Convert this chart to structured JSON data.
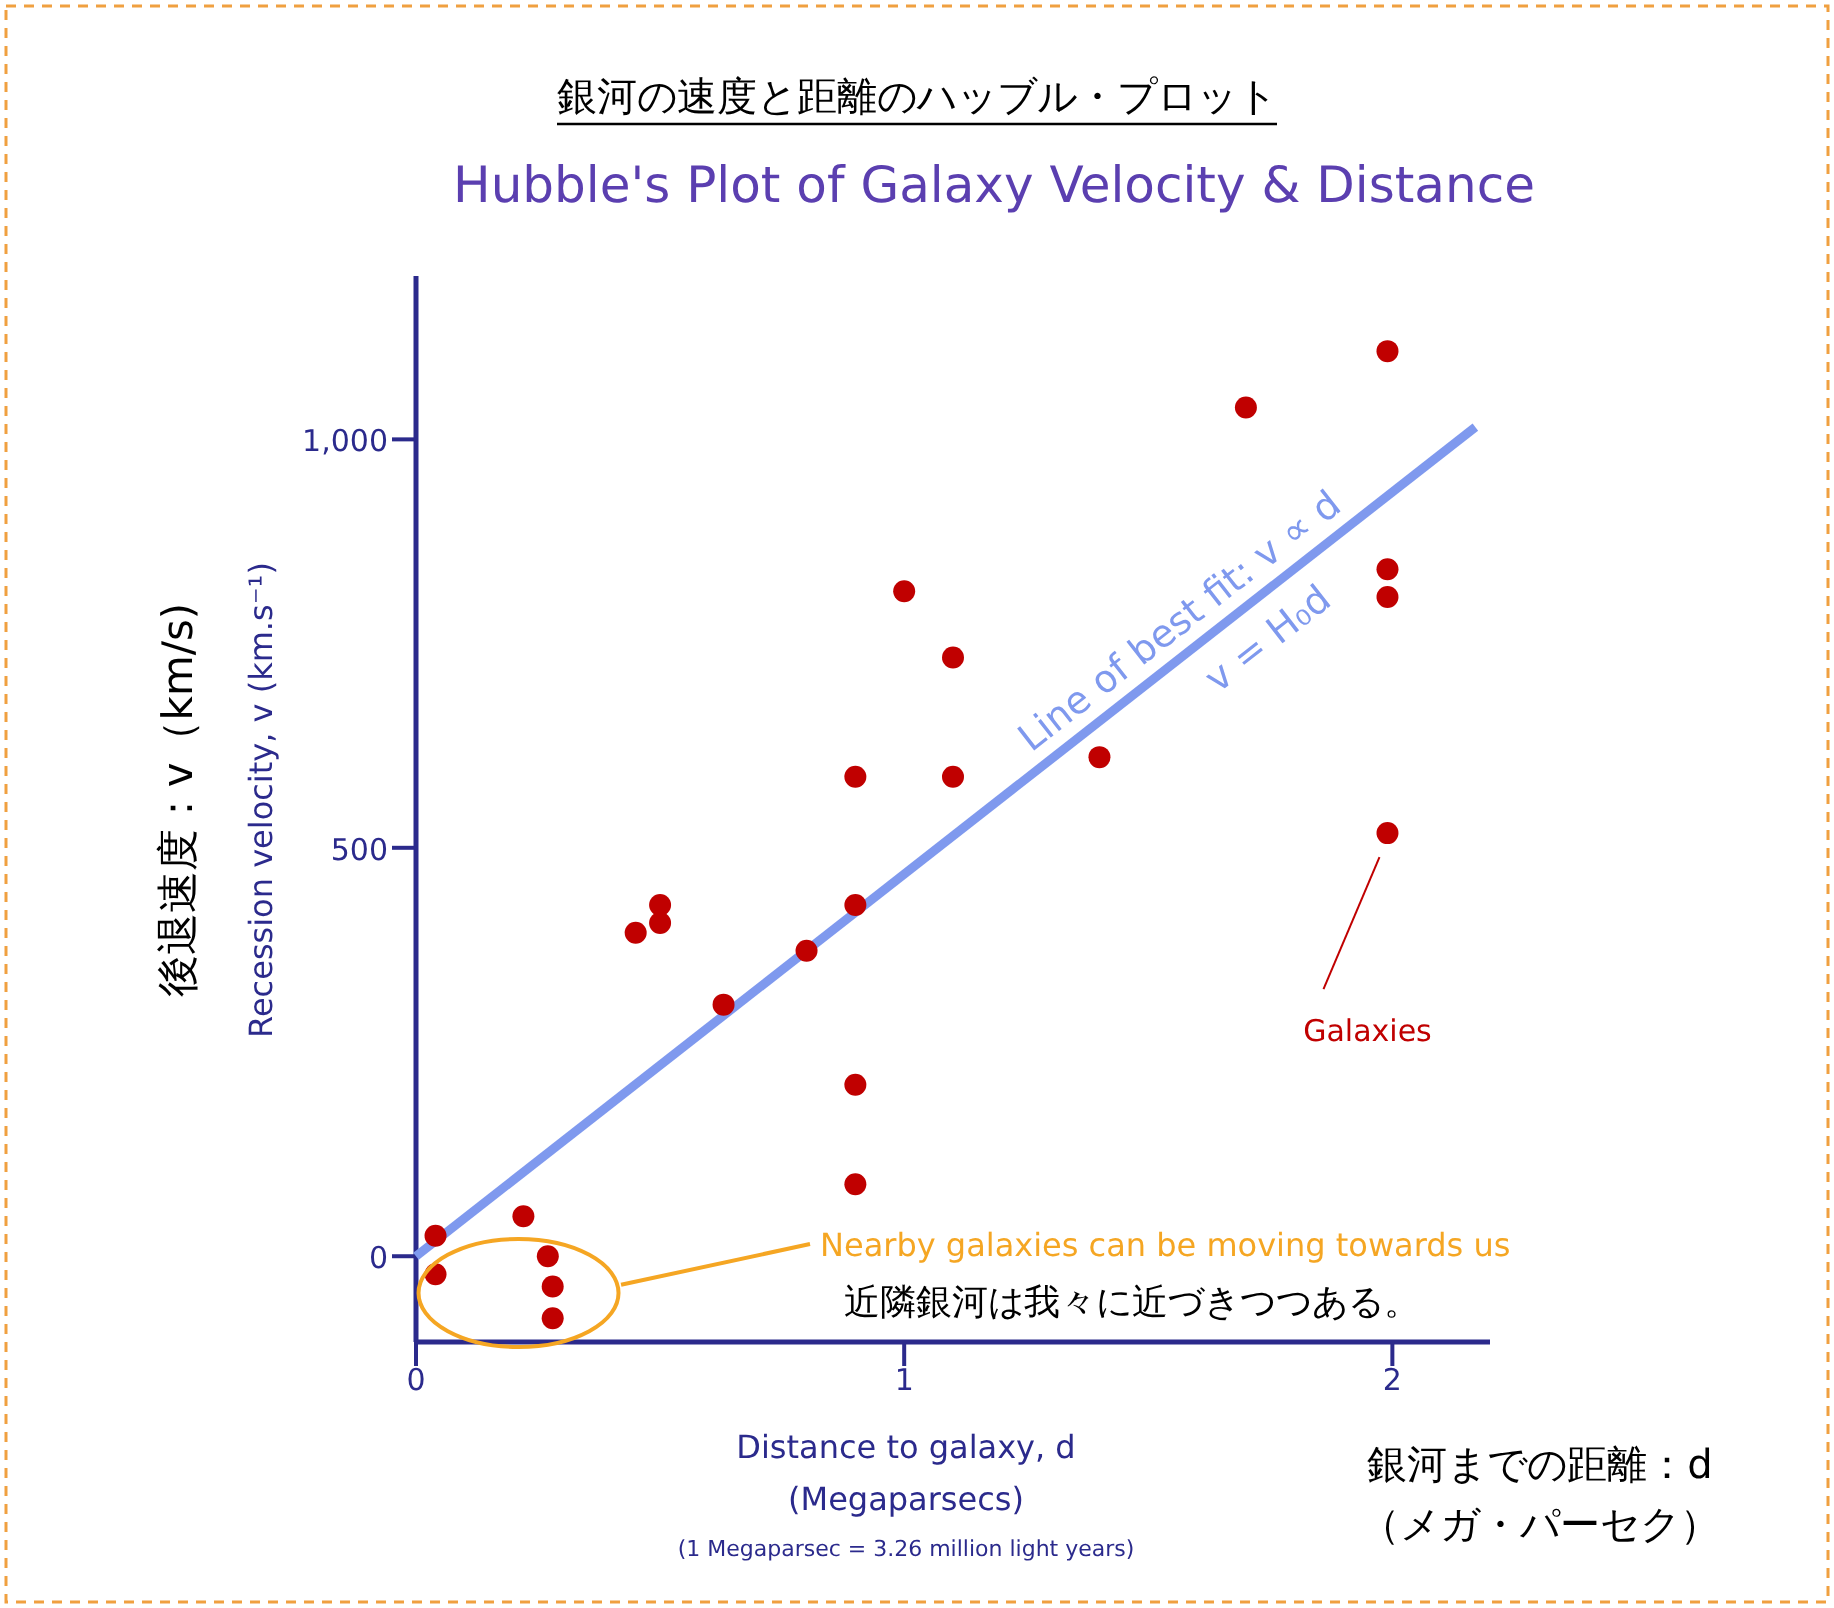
{
  "chart_data": {
    "type": "scatter",
    "title": "銀河の速度と距離のハッブル・プロット",
    "subtitle": "Hubble's Plot of Galaxy Velocity & Distance",
    "xlabel": "Distance to galaxy, d\n(Megaparsecs)",
    "ylabel": "Recession velocity, v (km.s⁻¹)",
    "xlim": [
      0,
      2.2
    ],
    "ylim": [
      -105,
      1200
    ],
    "xticks": [
      0,
      1,
      2
    ],
    "yticks": [
      0,
      500,
      {
        "value": 1000,
        "label": "1,000"
      }
    ],
    "grid": false,
    "marker": "circle",
    "series": [
      {
        "color": "#c00000",
        "x": [
          0.04,
          0.04,
          0.22,
          0.27,
          0.28,
          0.28,
          0.45,
          0.5,
          0.5,
          0.63,
          0.8,
          0.9,
          0.9,
          0.9,
          0.9,
          1.0,
          1.1,
          1.1,
          1.4,
          1.7,
          1.99,
          1.99,
          1.99,
          1.99
        ],
        "values": [
          25,
          -22,
          49,
          0,
          -37,
          -76,
          396,
          408,
          430,
          308,
          374,
          430,
          210,
          88,
          587,
          814,
          733,
          587,
          611,
          1039,
          1108,
          841,
          807,
          518
        ]
      },
      {
        "type": "line",
        "marker": "none",
        "color": "#7f99ee",
        "x": [
          0,
          2.17
        ],
        "values": [
          0,
          1015
        ]
      }
    ],
    "annotations": [
      {
        "text": "Line of best fit: v ∝ d",
        "x": 1.6,
        "y": 750
      },
      {
        "text": "v = H₀d",
        "x": 1.7,
        "y": 790
      },
      "Galaxies",
      "Nearby galaxies can be moving towards us",
      "近隣銀河は我々に近づきつつある。",
      "後退速度：v（km/s)",
      "(1 Megaparsec = 3.26 million light years)",
      "銀河までの距離：d",
      "（メガ・パーセク）"
    ]
  }
}
